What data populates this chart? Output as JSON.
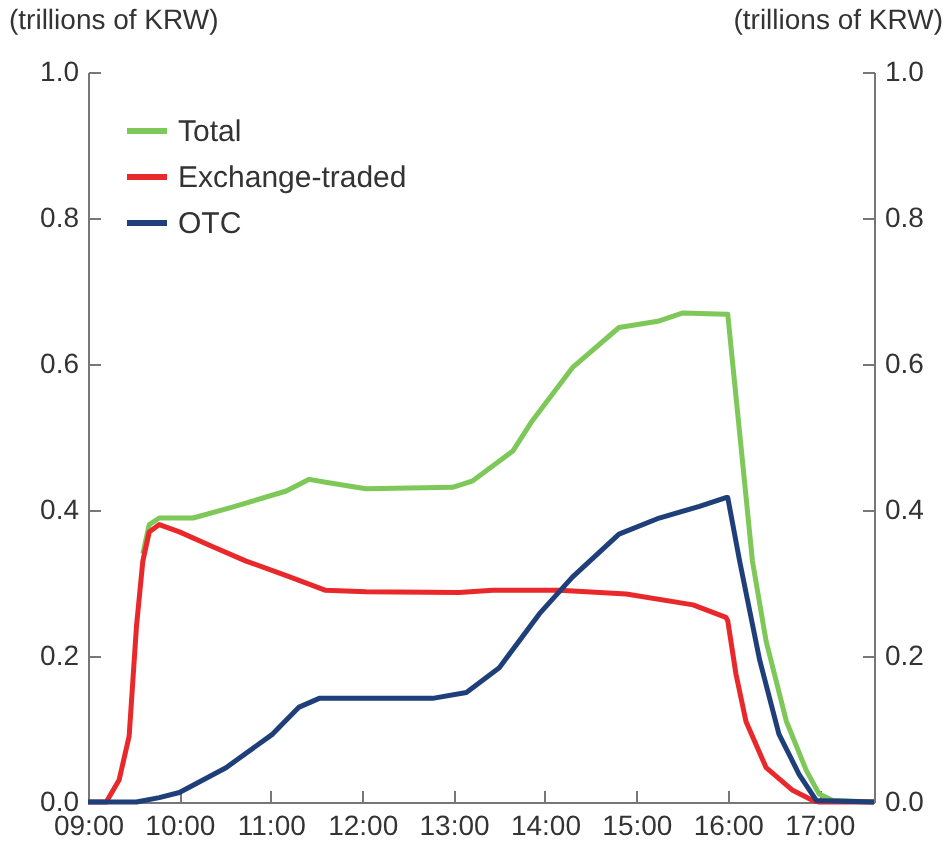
{
  "chart_data": {
    "type": "line",
    "ylabel": "(trillions of KRW)",
    "y2label": "(trillions of KRW)",
    "xlim": [
      9,
      17.6
    ],
    "xticks": [
      {
        "value": 9,
        "label": "09:00"
      },
      {
        "value": 10,
        "label": "10:00"
      },
      {
        "value": 11,
        "label": "11:00"
      },
      {
        "value": 12,
        "label": "12:00"
      },
      {
        "value": 13,
        "label": "13:00"
      },
      {
        "value": 14,
        "label": "14:00"
      },
      {
        "value": 15,
        "label": "15:00"
      },
      {
        "value": 16,
        "label": "16:00"
      },
      {
        "value": 17,
        "label": "17:00"
      }
    ],
    "ylim": [
      0,
      1
    ],
    "yticks": [
      {
        "value": 0,
        "label": "0.0"
      },
      0.2,
      0.4,
      0.6,
      0.8,
      {
        "value": 1,
        "label": "1.0"
      }
    ],
    "y2lim": [
      0,
      1
    ],
    "y2ticks": [
      {
        "value": 0,
        "label": "0.0"
      },
      0.2,
      0.4,
      0.6,
      0.8,
      {
        "value": 1,
        "label": "1.0"
      }
    ],
    "legend": "top left",
    "grid": false,
    "line_style": "solid",
    "series": [
      {
        "name": "Total",
        "color": "#7dc858",
        "x": [
          9.6,
          9.67,
          9.78,
          10.15,
          10.58,
          11.17,
          11.42,
          11.6,
          12.04,
          12.99,
          13.21,
          13.65,
          13.86,
          14.3,
          14.81,
          15.25,
          15.51,
          15.98,
          16.0,
          16.05,
          16.16,
          16.27,
          16.42,
          16.64,
          16.86,
          17.0,
          17.15,
          17.6
        ],
        "values": [
          0.34,
          0.38,
          0.389,
          0.389,
          0.404,
          0.426,
          0.442,
          0.438,
          0.429,
          0.431,
          0.44,
          0.481,
          0.522,
          0.595,
          0.65,
          0.659,
          0.67,
          0.668,
          0.668,
          0.605,
          0.468,
          0.33,
          0.22,
          0.111,
          0.043,
          0.011,
          0.002,
          0
        ]
      },
      {
        "name": "Exchange-traded",
        "color": "#e8282a",
        "x": [
          9,
          9.2,
          9.34,
          9.45,
          9.53,
          9.6,
          9.67,
          9.78,
          10.0,
          10.36,
          10.73,
          11.17,
          11.6,
          12.04,
          13.06,
          13.43,
          14.16,
          14.89,
          15.62,
          15.98,
          16.0,
          16.09,
          16.2,
          16.42,
          16.71,
          16.93,
          17.0,
          17.6
        ],
        "values": [
          0,
          0,
          0.03,
          0.09,
          0.24,
          0.33,
          0.37,
          0.38,
          0.37,
          0.35,
          0.33,
          0.31,
          0.29,
          0.288,
          0.287,
          0.29,
          0.29,
          0.285,
          0.27,
          0.253,
          0.248,
          0.175,
          0.11,
          0.047,
          0.016,
          0.002,
          0,
          0
        ]
      },
      {
        "name": "OTC",
        "color": "#1f3f7a",
        "x": [
          9,
          9.53,
          9.78,
          10.0,
          10.51,
          11.02,
          11.31,
          11.53,
          12.77,
          13.14,
          13.5,
          13.94,
          14.3,
          14.81,
          15.25,
          15.69,
          15.98,
          16.0,
          16.13,
          16.35,
          16.56,
          16.78,
          16.97,
          17.6
        ],
        "values": [
          0,
          0,
          0.006,
          0.013,
          0.047,
          0.093,
          0.13,
          0.142,
          0.142,
          0.15,
          0.184,
          0.258,
          0.308,
          0.367,
          0.389,
          0.405,
          0.417,
          0.417,
          0.33,
          0.194,
          0.093,
          0.038,
          0.002,
          0
        ]
      }
    ]
  }
}
